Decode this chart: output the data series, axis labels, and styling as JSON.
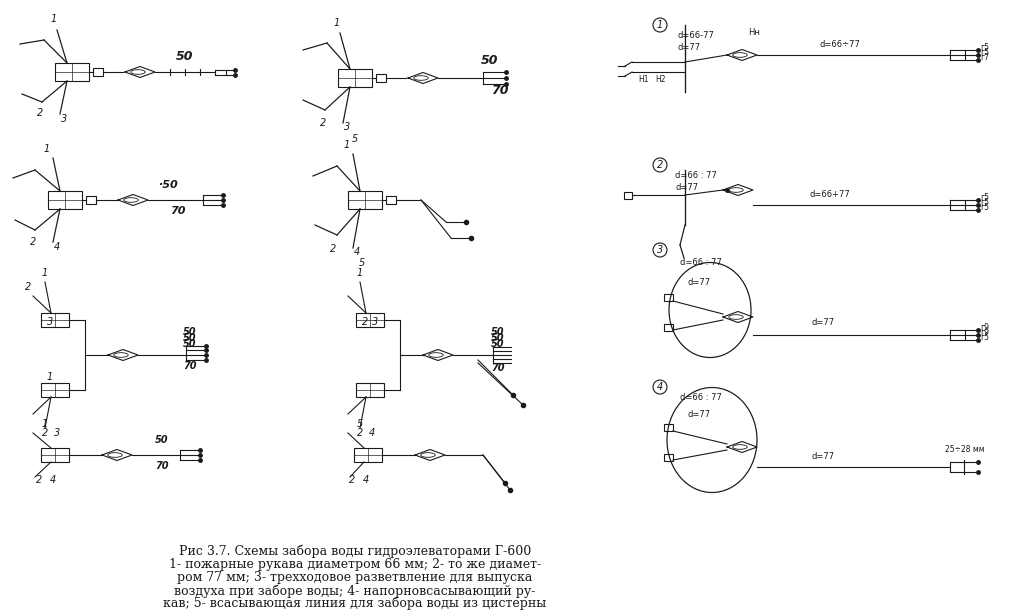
{
  "caption_line1": "Рис 3.7. Схемы забора воды гидроэлеваторами Г-600",
  "caption_line2": "1- пожарные рукава диаметром 66 мм; 2- то же диамет-",
  "caption_line3": "ром 77 мм; 3- трехходовое разветвление для выпуска",
  "caption_line4": "воздуха при заборе воды; 4- напорновсасывающий ру-",
  "caption_line5": "кав; 5- всасывающая линия для забора воды из цистерны",
  "bg_color": "#ffffff",
  "line_color": "#1a1a1a",
  "font_size_caption": 9,
  "font_size_label": 7
}
